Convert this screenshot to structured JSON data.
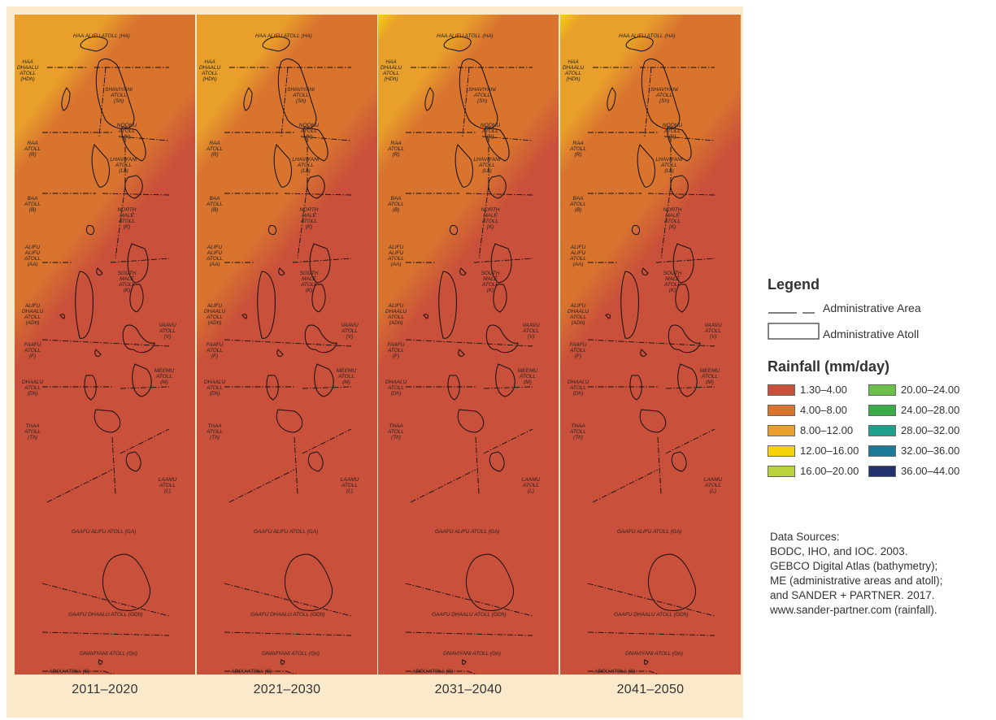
{
  "panels": [
    {
      "period": "2011–2020",
      "yellow_corner": false
    },
    {
      "period": "2021–2030",
      "yellow_corner": false
    },
    {
      "period": "2031–2040",
      "yellow_corner": true
    },
    {
      "period": "2041–2050",
      "yellow_corner": true
    }
  ],
  "legend": {
    "title": "Legend",
    "admin_area": "Administrative Area",
    "admin_atoll": "Administrative Atoll",
    "rainfall_title": "Rainfall (mm/day)",
    "classes": [
      {
        "label": "1.30–4.00",
        "color": "#c9503a"
      },
      {
        "label": "20.00–24.00",
        "color": "#6abf4b"
      },
      {
        "label": "4.00–8.00",
        "color": "#d9742f"
      },
      {
        "label": "24.00–28.00",
        "color": "#3aaa4a"
      },
      {
        "label": "8.00–12.00",
        "color": "#e8a02a"
      },
      {
        "label": "28.00–32.00",
        "color": "#1fa08a"
      },
      {
        "label": "12.00–16.00",
        "color": "#f5d20a"
      },
      {
        "label": "32.00–36.00",
        "color": "#1b7a98"
      },
      {
        "label": "16.00–20.00",
        "color": "#b9d33a"
      },
      {
        "label": "36.00–44.00",
        "color": "#24306e"
      }
    ]
  },
  "sources": {
    "heading": "Data Sources:",
    "lines": [
      "BODC, IHO, and IOC. 2003.",
      "GEBCO Digital Atlas (bathymetry);",
      "ME (administrative areas and atoll);",
      "and SANDER + PARTNER. 2017.",
      "www.sander-partner.com (rainfall)."
    ]
  },
  "atoll_labels": [
    {
      "lines": [
        "HAA ALIFU ATOLL (HA)"
      ]
    },
    {
      "lines": [
        "HAA",
        "DHAALU",
        "ATOLL",
        "(HDh)"
      ]
    },
    {
      "lines": [
        "SHAVIYANI",
        "ATOLL",
        "(Sh)"
      ]
    },
    {
      "lines": [
        "NOONU",
        "ATOLL",
        "(N)"
      ]
    },
    {
      "lines": [
        "RAA",
        "ATOLL",
        "(R)"
      ]
    },
    {
      "lines": [
        "LHAVIYANI",
        "ATOLL",
        "(Lh)"
      ]
    },
    {
      "lines": [
        "BAA",
        "ATOLL",
        "(B)"
      ]
    },
    {
      "lines": [
        "NORTH",
        "MALÉ",
        "ATOLL",
        "(K)"
      ]
    },
    {
      "lines": [
        "ALIFU",
        "ALIFU",
        "ATOLL",
        "(AA)"
      ]
    },
    {
      "lines": [
        "SOUTH",
        "MALÉ",
        "ATOLL",
        "(K)"
      ]
    },
    {
      "lines": [
        "ALIFU",
        "DHAALU",
        "ATOLL",
        "(ADh)"
      ]
    },
    {
      "lines": [
        "VAAVU",
        "ATOLL",
        "(V)"
      ]
    },
    {
      "lines": [
        "FAAFU",
        "ATOLL",
        "(F)"
      ]
    },
    {
      "lines": [
        "MEEMU",
        "ATOLL",
        "(M)"
      ]
    },
    {
      "lines": [
        "DHAALU",
        "ATOLL",
        "(Dh)"
      ]
    },
    {
      "lines": [
        "THAA",
        "ATOLL",
        "(Th)"
      ]
    },
    {
      "lines": [
        "LAAMU",
        "ATOLL",
        "(L)"
      ]
    },
    {
      "lines": [
        "GAAFU ALIFU ATOLL (GA)"
      ]
    },
    {
      "lines": [
        "GAAFU DHAALU ATOLL (GDh)"
      ]
    },
    {
      "lines": [
        "GNAVIYANI ATOLL (Gn)"
      ]
    },
    {
      "lines": [
        "ADDU ATOLL (S)"
      ]
    }
  ]
}
